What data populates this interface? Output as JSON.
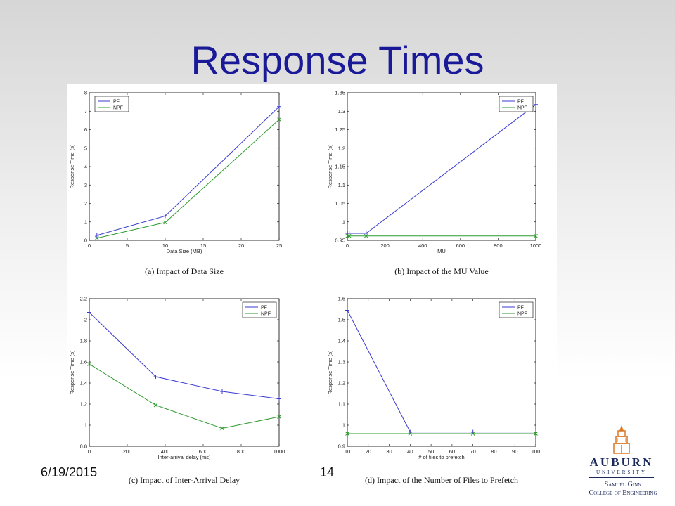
{
  "slide": {
    "title": "Response Times",
    "footer_date": "6/19/2015",
    "footer_page": "14"
  },
  "logo": {
    "name": "AUBURN",
    "sub": "UNIVERSITY",
    "college_line1": "Samuel Ginn",
    "college_line2": "College of Engineering",
    "colors": {
      "navy": "#1b2a5a",
      "orange": "#dd7722"
    }
  },
  "colors": {
    "title": "#1a1a99",
    "pf": "#3a3acf",
    "npf": "#2e9a2e"
  },
  "chart_data": [
    {
      "type": "line",
      "caption": "(a) Impact of Data Size",
      "xlabel": "Data Size (MB)",
      "ylabel": "Response Time (s)",
      "xlim": [
        0,
        25
      ],
      "ylim": [
        0,
        8
      ],
      "xticks": [
        0,
        5,
        10,
        15,
        20,
        25
      ],
      "yticks": [
        0,
        1,
        2,
        3,
        4,
        5,
        6,
        7,
        8
      ],
      "xtick_labels": [
        "0",
        "5",
        "10",
        "15",
        "20",
        "25"
      ],
      "ytick_labels": [
        "0",
        "1",
        "2",
        "3",
        "4",
        "5",
        "6",
        "7",
        "8"
      ],
      "legend": "top-left",
      "series": [
        {
          "name": "PF",
          "x": [
            1,
            10,
            25
          ],
          "y": [
            0.27,
            1.32,
            7.25
          ]
        },
        {
          "name": "NPF",
          "x": [
            1,
            10,
            25
          ],
          "y": [
            0.12,
            0.97,
            6.55
          ]
        }
      ]
    },
    {
      "type": "line",
      "caption": "(b) Impact of the MU Value",
      "xlabel": "MU",
      "ylabel": "Response Time (s)",
      "xlim": [
        0,
        1000
      ],
      "ylim": [
        0.95,
        1.35
      ],
      "xticks": [
        0,
        200,
        400,
        600,
        800,
        1000
      ],
      "yticks": [
        0.95,
        1,
        1.05,
        1.1,
        1.15,
        1.2,
        1.25,
        1.3,
        1.35
      ],
      "xtick_labels": [
        "0",
        "200",
        "400",
        "600",
        "800",
        "1000"
      ],
      "ytick_labels": [
        "0.95",
        "1",
        "1.05",
        "1.1",
        "1.15",
        "1.2",
        "1.25",
        "1.3",
        "1.35"
      ],
      "legend": "top-right",
      "series": [
        {
          "name": "PF",
          "x": [
            1,
            10,
            100,
            1000
          ],
          "y": [
            0.969,
            0.969,
            0.969,
            1.318
          ]
        },
        {
          "name": "NPF",
          "x": [
            1,
            10,
            100,
            1000
          ],
          "y": [
            0.962,
            0.962,
            0.962,
            0.962
          ]
        }
      ]
    },
    {
      "type": "line",
      "caption": "(c) Impact of Inter-Arrival Delay",
      "xlabel": "Inter-arrival delay (ms)",
      "ylabel": "Response Time (s)",
      "xlim": [
        0,
        1000
      ],
      "ylim": [
        0.8,
        2.2
      ],
      "xticks": [
        0,
        200,
        400,
        600,
        800,
        1000
      ],
      "yticks": [
        0.8,
        1,
        1.2,
        1.4,
        1.6,
        1.8,
        2,
        2.2
      ],
      "xtick_labels": [
        "0",
        "200",
        "400",
        "600",
        "800",
        "1000"
      ],
      "ytick_labels": [
        "0.8",
        "1",
        "1.2",
        "1.4",
        "1.6",
        "1.8",
        "2",
        "2.2"
      ],
      "legend": "top-right",
      "series": [
        {
          "name": "PF",
          "x": [
            0,
            350,
            700,
            1000
          ],
          "y": [
            2.07,
            1.46,
            1.32,
            1.25
          ]
        },
        {
          "name": "NPF",
          "x": [
            0,
            350,
            700,
            1000
          ],
          "y": [
            1.58,
            1.19,
            0.97,
            1.08
          ]
        }
      ]
    },
    {
      "type": "line",
      "caption": "(d) Impact of the Number of Files to Prefetch",
      "xlabel": "# of files to prefetch",
      "ylabel": "Response Time (s)",
      "xlim": [
        10,
        100
      ],
      "ylim": [
        0.9,
        1.6
      ],
      "xticks": [
        10,
        20,
        30,
        40,
        50,
        60,
        70,
        80,
        90,
        100
      ],
      "yticks": [
        0.9,
        1,
        1.1,
        1.2,
        1.3,
        1.4,
        1.5,
        1.6
      ],
      "xtick_labels": [
        "10",
        "20",
        "30",
        "40",
        "50",
        "60",
        "70",
        "80",
        "90",
        "100"
      ],
      "ytick_labels": [
        "0.9",
        "1",
        "1.1",
        "1.2",
        "1.3",
        "1.4",
        "1.5",
        "1.6"
      ],
      "legend": "top-right",
      "series": [
        {
          "name": "PF",
          "x": [
            10,
            40,
            70,
            100
          ],
          "y": [
            1.545,
            0.968,
            0.968,
            0.968
          ]
        },
        {
          "name": "NPF",
          "x": [
            10,
            40,
            70,
            100
          ],
          "y": [
            0.96,
            0.96,
            0.96,
            0.96
          ]
        }
      ]
    }
  ]
}
